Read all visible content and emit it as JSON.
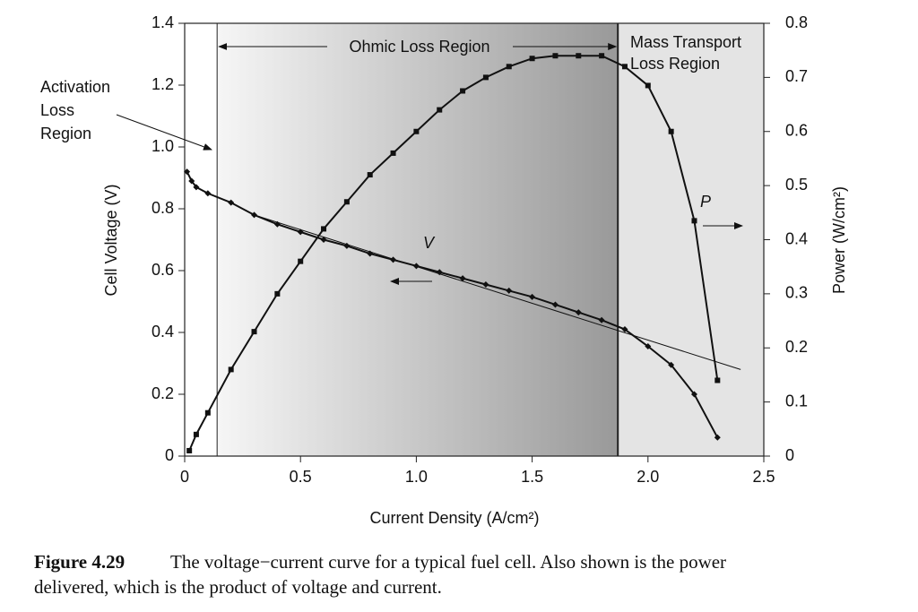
{
  "chart_data": {
    "type": "line",
    "x_label": "Current Density (A/cm²)",
    "y_label": "Cell Voltage  (V)",
    "y2_label": "Power (W/cm²)",
    "xlim": [
      0,
      2.5
    ],
    "xticks": [
      0,
      0.5,
      {
        "value": 1,
        "label": "1.0"
      },
      1.5,
      {
        "value": 2,
        "label": "2.0"
      },
      2.5
    ],
    "ylim": [
      0,
      1.4
    ],
    "yticks": [
      0,
      0.2,
      0.4,
      0.6,
      0.8,
      {
        "value": 1,
        "label": "1.0"
      },
      1.2,
      1.4
    ],
    "y2lim": [
      0,
      0.8
    ],
    "y2ticks": [
      0,
      0.1,
      0.2,
      0.3,
      0.4,
      0.5,
      0.6,
      0.7,
      0.8
    ],
    "regions": [
      {
        "label": [
          "Activation",
          "Loss",
          "Region"
        ],
        "xlim": [
          0,
          0.14
        ],
        "color": "#ffffff"
      },
      {
        "label": [
          "Ohmic Loss Region"
        ],
        "xlim": [
          0.14,
          1.87
        ],
        "gradient": [
          "#f6f6f6",
          "#999999"
        ]
      },
      {
        "label": [
          "Mass Transport",
          "Loss Region"
        ],
        "xlim": [
          1.87,
          2.5
        ],
        "color": "#e4e4e4"
      }
    ],
    "series": [
      {
        "name": "V",
        "color": "#111111",
        "marker": "diamond",
        "x": [
          0.01,
          0.03,
          0.05,
          0.1,
          0.2,
          0.3,
          0.4,
          0.5,
          0.6,
          0.7,
          0.8,
          0.9,
          1.0,
          1.1,
          1.2,
          1.3,
          1.4,
          1.5,
          1.6,
          1.7,
          1.8,
          1.9,
          2.0,
          2.1,
          2.2,
          2.3
        ],
        "values": [
          0.92,
          0.89,
          0.87,
          0.85,
          0.82,
          0.78,
          0.75,
          0.725,
          0.7,
          0.68,
          0.655,
          0.635,
          0.615,
          0.595,
          0.575,
          0.555,
          0.535,
          0.515,
          0.49,
          0.465,
          0.44,
          0.41,
          0.355,
          0.295,
          0.2,
          0.06
        ]
      },
      {
        "name": "P",
        "color": "#111111",
        "marker": "square",
        "axis": "y2",
        "x": [
          0.02,
          0.05,
          0.1,
          0.2,
          0.3,
          0.4,
          0.5,
          0.6,
          0.7,
          0.8,
          0.9,
          1.0,
          1.1,
          1.2,
          1.3,
          1.4,
          1.5,
          1.6,
          1.7,
          1.8,
          1.9,
          2.0,
          2.1,
          2.2,
          2.3
        ],
        "values": [
          0.01,
          0.04,
          0.08,
          0.16,
          0.23,
          0.3,
          0.36,
          0.42,
          0.47,
          0.52,
          0.56,
          0.6,
          0.64,
          0.675,
          0.7,
          0.72,
          0.735,
          0.74,
          0.74,
          0.74,
          0.72,
          0.685,
          0.6,
          0.435,
          0.14
        ]
      }
    ],
    "fit_line": {
      "x": [
        0.3,
        2.4
      ],
      "values": [
        0.78,
        0.28
      ]
    }
  },
  "caption": {
    "label": "Figure 4.29",
    "text": [
      "The voltage−current curve for a typical fuel cell. Also shown is the power",
      "delivered, which is the product of voltage and current."
    ]
  }
}
